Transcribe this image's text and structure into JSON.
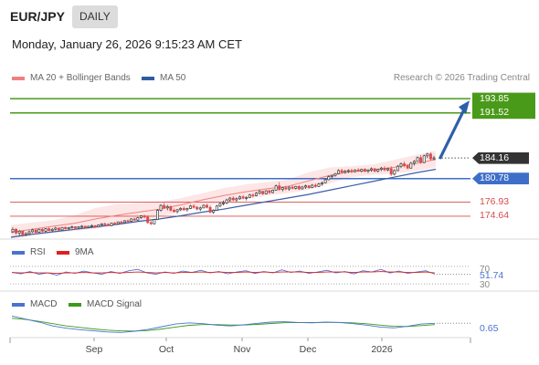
{
  "header": {
    "pair": "EUR/JPY",
    "period": "DAILY",
    "datetime": "Monday, January 26, 2026 9:15:23 AM CET"
  },
  "legend": {
    "items": [
      {
        "label": "MA 20 + Bollinger Bands",
        "color": "#f08080"
      },
      {
        "label": "MA 50",
        "color": "#2e5d9e"
      }
    ],
    "copyright": "Research © 2026 Trading Central"
  },
  "colors": {
    "up": "#3a3a3a",
    "down": "#d84c4c",
    "ma20": "#f08080",
    "ma50": "#3b5ea8",
    "band": "#fde6e6",
    "green": "#4a9a1a",
    "blue": "#3d6fc9",
    "red": "#d84c4c",
    "arrow": "#2e5fa8"
  },
  "levels": [
    {
      "value": 193.85,
      "label": "193.85",
      "kind": "target"
    },
    {
      "value": 191.52,
      "label": "191.52",
      "kind": "target"
    },
    {
      "value": 184.16,
      "label": "184.16",
      "kind": "last"
    },
    {
      "value": 180.78,
      "label": "180.78",
      "kind": "pivot"
    },
    {
      "value": 176.93,
      "label": "176.93",
      "kind": "support"
    },
    {
      "value": 174.64,
      "label": "174.64",
      "kind": "support"
    }
  ],
  "rsi": {
    "legend": [
      {
        "label": "RSI",
        "color": "#4a72d0"
      },
      {
        "label": "9MA",
        "color": "#e02020"
      }
    ],
    "levels": [
      "70",
      "30"
    ],
    "value": "51.74"
  },
  "macd": {
    "legend": [
      {
        "label": "MACD",
        "color": "#4a72d0"
      },
      {
        "label": "MACD Signal",
        "color": "#3a9a1a"
      }
    ],
    "value": "0.65"
  },
  "xaxis": {
    "labels": [
      "Sep",
      "Oct",
      "Nov",
      "Dec",
      "2026"
    ]
  },
  "chart_data": {
    "type": "candlestick",
    "title": "EUR/JPY",
    "period": "DAILY",
    "start_date": "2025-08-07",
    "x_labels": [
      "Sep",
      "Oct",
      "Nov",
      "Dec",
      "2026"
    ],
    "ylim": [
      171.5,
      195.5
    ],
    "candles": [
      [
        172.1,
        172.8,
        171.9,
        172.5
      ],
      [
        172.5,
        172.7,
        171.6,
        171.9
      ],
      [
        171.9,
        172.4,
        171.4,
        172.2
      ],
      [
        172.2,
        172.3,
        171.3,
        171.6
      ],
      [
        171.6,
        172.0,
        171.4,
        171.8
      ],
      [
        171.8,
        172.3,
        171.6,
        172.1
      ],
      [
        172.1,
        172.6,
        171.9,
        172.4
      ],
      [
        172.4,
        172.5,
        171.8,
        172.0
      ],
      [
        172.0,
        172.6,
        171.9,
        172.5
      ],
      [
        172.5,
        172.7,
        172.0,
        172.2
      ],
      [
        172.2,
        172.7,
        172.0,
        172.6
      ],
      [
        172.6,
        172.8,
        172.2,
        172.3
      ],
      [
        172.3,
        172.7,
        172.1,
        172.5
      ],
      [
        172.5,
        172.9,
        172.3,
        172.7
      ],
      [
        172.7,
        172.8,
        172.2,
        172.4
      ],
      [
        172.4,
        172.9,
        172.3,
        172.8
      ],
      [
        172.8,
        173.0,
        172.5,
        172.6
      ],
      [
        172.6,
        172.9,
        172.4,
        172.8
      ],
      [
        172.8,
        173.1,
        172.6,
        172.9
      ],
      [
        172.9,
        173.0,
        172.5,
        172.7
      ],
      [
        172.7,
        173.0,
        172.6,
        172.9
      ],
      [
        172.9,
        173.2,
        172.7,
        173.0
      ],
      [
        173.0,
        173.1,
        172.6,
        172.8
      ],
      [
        172.8,
        173.1,
        172.7,
        173.0
      ],
      [
        173.0,
        173.3,
        172.8,
        173.1
      ],
      [
        173.1,
        173.2,
        172.7,
        172.9
      ],
      [
        172.9,
        173.3,
        172.8,
        173.2
      ],
      [
        173.2,
        173.5,
        173.0,
        173.4
      ],
      [
        173.4,
        173.6,
        173.1,
        173.3
      ],
      [
        173.3,
        173.5,
        173.0,
        173.1
      ],
      [
        173.1,
        173.6,
        173.0,
        173.5
      ],
      [
        173.5,
        173.7,
        173.2,
        173.4
      ],
      [
        173.4,
        173.8,
        173.3,
        173.7
      ],
      [
        173.7,
        173.9,
        173.4,
        173.6
      ],
      [
        173.6,
        174.0,
        173.5,
        173.9
      ],
      [
        173.9,
        174.1,
        173.6,
        173.8
      ],
      [
        173.8,
        174.3,
        173.7,
        174.2
      ],
      [
        174.2,
        174.4,
        173.9,
        174.0
      ],
      [
        174.0,
        174.5,
        173.9,
        174.4
      ],
      [
        174.4,
        174.8,
        174.2,
        174.7
      ],
      [
        174.7,
        174.9,
        174.3,
        174.5
      ],
      [
        174.5,
        174.8,
        173.4,
        173.6
      ],
      [
        173.6,
        173.9,
        173.2,
        173.4
      ],
      [
        173.4,
        174.2,
        173.3,
        174.1
      ],
      [
        174.1,
        175.8,
        174.0,
        175.6
      ],
      [
        175.6,
        176.6,
        175.4,
        176.4
      ],
      [
        176.4,
        176.8,
        175.8,
        176.0
      ],
      [
        176.0,
        176.5,
        175.6,
        176.2
      ],
      [
        176.2,
        176.4,
        175.4,
        175.6
      ],
      [
        175.6,
        175.9,
        175.2,
        175.4
      ],
      [
        175.4,
        175.8,
        175.1,
        175.7
      ],
      [
        175.7,
        176.1,
        175.5,
        175.9
      ],
      [
        175.9,
        176.2,
        175.5,
        175.7
      ],
      [
        175.7,
        176.0,
        175.4,
        175.9
      ],
      [
        175.9,
        176.5,
        175.8,
        176.3
      ],
      [
        176.3,
        176.6,
        175.9,
        176.1
      ],
      [
        176.1,
        176.3,
        175.6,
        175.8
      ],
      [
        175.8,
        176.2,
        175.5,
        176.0
      ],
      [
        176.0,
        176.6,
        175.9,
        176.4
      ],
      [
        176.4,
        176.7,
        175.9,
        176.1
      ],
      [
        176.1,
        176.4,
        175.1,
        175.3
      ],
      [
        175.3,
        175.8,
        175.0,
        175.6
      ],
      [
        175.6,
        176.5,
        175.5,
        176.3
      ],
      [
        176.3,
        176.9,
        176.1,
        176.7
      ],
      [
        176.7,
        177.2,
        176.4,
        176.8
      ],
      [
        176.8,
        177.5,
        176.6,
        177.3
      ],
      [
        177.3,
        177.8,
        177.0,
        177.6
      ],
      [
        177.6,
        177.9,
        177.1,
        177.3
      ],
      [
        177.3,
        177.7,
        177.0,
        177.5
      ],
      [
        177.5,
        178.0,
        177.3,
        177.8
      ],
      [
        177.8,
        178.1,
        177.4,
        177.6
      ],
      [
        177.6,
        177.9,
        177.2,
        177.7
      ],
      [
        177.7,
        178.3,
        177.6,
        178.1
      ],
      [
        178.1,
        178.4,
        177.7,
        178.0
      ],
      [
        178.0,
        178.6,
        177.9,
        178.4
      ],
      [
        178.4,
        178.9,
        178.2,
        178.7
      ],
      [
        178.7,
        178.8,
        178.1,
        178.3
      ],
      [
        178.3,
        178.9,
        178.2,
        178.8
      ],
      [
        178.8,
        179.0,
        178.3,
        178.5
      ],
      [
        178.5,
        179.0,
        178.4,
        178.9
      ],
      [
        178.9,
        179.8,
        178.8,
        179.6
      ],
      [
        179.6,
        180.2,
        178.8,
        179.0
      ],
      [
        179.0,
        179.4,
        178.7,
        179.3
      ],
      [
        179.3,
        179.6,
        178.9,
        179.1
      ],
      [
        179.1,
        179.5,
        178.8,
        179.4
      ],
      [
        179.4,
        179.7,
        179.0,
        179.2
      ],
      [
        179.2,
        179.6,
        179.0,
        179.5
      ],
      [
        179.5,
        179.7,
        178.9,
        179.1
      ],
      [
        179.1,
        179.6,
        179.0,
        179.4
      ],
      [
        179.4,
        179.8,
        179.1,
        179.6
      ],
      [
        179.6,
        179.7,
        179.1,
        179.3
      ],
      [
        179.3,
        179.9,
        179.2,
        179.7
      ],
      [
        179.7,
        180.0,
        179.3,
        179.5
      ],
      [
        179.5,
        180.1,
        179.4,
        179.9
      ],
      [
        179.9,
        180.3,
        179.6,
        180.1
      ],
      [
        180.1,
        180.8,
        180.0,
        180.6
      ],
      [
        180.6,
        181.3,
        180.5,
        181.1
      ],
      [
        181.1,
        181.4,
        180.8,
        181.3
      ],
      [
        181.3,
        181.7,
        181.1,
        181.6
      ],
      [
        181.6,
        182.3,
        181.5,
        182.1
      ],
      [
        182.1,
        182.4,
        181.6,
        181.8
      ],
      [
        181.8,
        182.2,
        181.6,
        182.0
      ],
      [
        182.0,
        182.3,
        181.7,
        182.1
      ],
      [
        182.1,
        182.4,
        181.7,
        181.9
      ],
      [
        181.9,
        182.3,
        181.8,
        182.2
      ],
      [
        182.2,
        182.5,
        181.9,
        182.0
      ],
      [
        182.0,
        182.4,
        181.8,
        182.3
      ],
      [
        182.3,
        182.5,
        181.8,
        182.0
      ],
      [
        182.0,
        182.3,
        181.7,
        182.2
      ],
      [
        182.2,
        182.6,
        181.9,
        182.4
      ],
      [
        182.4,
        182.5,
        181.8,
        182.0
      ],
      [
        182.0,
        182.4,
        181.8,
        182.3
      ],
      [
        182.3,
        182.7,
        182.0,
        182.5
      ],
      [
        182.5,
        182.8,
        182.0,
        182.2
      ],
      [
        182.2,
        182.6,
        182.0,
        182.4
      ],
      [
        182.4,
        182.8,
        181.2,
        181.5
      ],
      [
        181.5,
        182.3,
        181.3,
        182.1
      ],
      [
        182.1,
        183.0,
        182.0,
        182.8
      ],
      [
        182.8,
        183.4,
        182.5,
        183.2
      ],
      [
        183.2,
        183.6,
        182.6,
        182.9
      ],
      [
        182.9,
        183.1,
        182.3,
        182.5
      ],
      [
        182.5,
        183.5,
        182.4,
        183.3
      ],
      [
        183.3,
        183.8,
        182.9,
        183.6
      ],
      [
        183.6,
        184.4,
        183.5,
        184.2
      ],
      [
        184.2,
        184.6,
        183.2,
        183.4
      ],
      [
        183.4,
        184.7,
        183.3,
        184.5
      ],
      [
        184.5,
        185.0,
        184.1,
        184.8
      ],
      [
        184.8,
        185.1,
        183.7,
        184.0
      ],
      [
        184.0,
        184.5,
        183.8,
        184.16
      ]
    ],
    "ma20": [
      172.0,
      172.5,
      173.0,
      173.5,
      174.2,
      174.8,
      175.3,
      175.8,
      176.5,
      177.3,
      178.0,
      178.6,
      179.1,
      179.5,
      180.4,
      181.3,
      181.9,
      182.2,
      182.6,
      183.2,
      183.9
    ],
    "bollinger_upper": [
      173.2,
      173.6,
      174.0,
      174.8,
      176.0,
      176.6,
      176.8,
      177.0,
      177.6,
      178.4,
      179.2,
      179.8,
      180.2,
      180.6,
      181.8,
      182.6,
      182.8,
      183.1,
      183.8,
      184.6,
      185.3
    ],
    "bollinger_lower": [
      171.0,
      171.4,
      171.9,
      172.2,
      172.6,
      173.2,
      173.8,
      174.6,
      175.4,
      176.2,
      176.8,
      177.4,
      178.0,
      178.4,
      179.0,
      180.0,
      181.0,
      181.4,
      181.6,
      182.0,
      182.6
    ],
    "ma50": [
      171.2,
      171.7,
      172.1,
      172.5,
      172.9,
      173.3,
      173.8,
      174.2,
      174.7,
      175.3,
      175.8,
      176.4,
      177.0,
      177.6,
      178.2,
      178.9,
      179.6,
      180.3,
      181.0,
      181.7,
      182.3
    ],
    "levels": {
      "resistance": [
        193.85,
        191.52
      ],
      "last": 184.16,
      "pivot": 180.78,
      "support": [
        176.93,
        174.64
      ]
    },
    "target_arrow": {
      "from": 184.2,
      "to": 192.8
    },
    "rsi": {
      "ylim": [
        20,
        80
      ],
      "levels": [
        70,
        30
      ],
      "last": 51.74,
      "rsi": [
        56,
        53,
        58,
        52,
        55,
        50,
        57,
        54,
        59,
        55,
        52,
        58,
        54,
        60,
        63,
        55,
        52,
        57,
        54,
        59,
        56,
        61,
        55,
        58,
        53,
        57,
        60,
        54,
        58,
        55,
        62,
        56,
        59,
        54,
        57,
        61,
        55,
        58,
        53,
        60,
        57,
        63,
        55,
        59,
        54,
        57,
        60,
        52
      ],
      "ma9": [
        56,
        55,
        56,
        55,
        55,
        54,
        55,
        55,
        56,
        55,
        55,
        56,
        55,
        56,
        57,
        56,
        55,
        56,
        55,
        56,
        56,
        57,
        56,
        57,
        56,
        56,
        57,
        56,
        57,
        56,
        57,
        57,
        57,
        56,
        56,
        57,
        57,
        57,
        56,
        57,
        57,
        58,
        57,
        57,
        56,
        56,
        57,
        55
      ]
    },
    "macd": {
      "ylim": [
        -1.0,
        2.0
      ],
      "last": 0.65,
      "macd": [
        1.6,
        1.2,
        0.8,
        0.3,
        0.0,
        -0.2,
        -0.35,
        -0.5,
        -0.55,
        -0.4,
        -0.15,
        0.2,
        0.55,
        0.7,
        0.6,
        0.4,
        0.3,
        0.45,
        0.65,
        0.8,
        0.85,
        0.75,
        0.7,
        0.8,
        0.75,
        0.6,
        0.4,
        0.15,
        0.05,
        0.25,
        0.55,
        0.65
      ],
      "signal": [
        1.3,
        1.15,
        0.9,
        0.6,
        0.3,
        0.1,
        -0.1,
        -0.25,
        -0.35,
        -0.38,
        -0.3,
        -0.1,
        0.15,
        0.38,
        0.48,
        0.48,
        0.42,
        0.42,
        0.5,
        0.62,
        0.72,
        0.75,
        0.74,
        0.76,
        0.76,
        0.7,
        0.58,
        0.4,
        0.25,
        0.22,
        0.35,
        0.48
      ]
    }
  }
}
